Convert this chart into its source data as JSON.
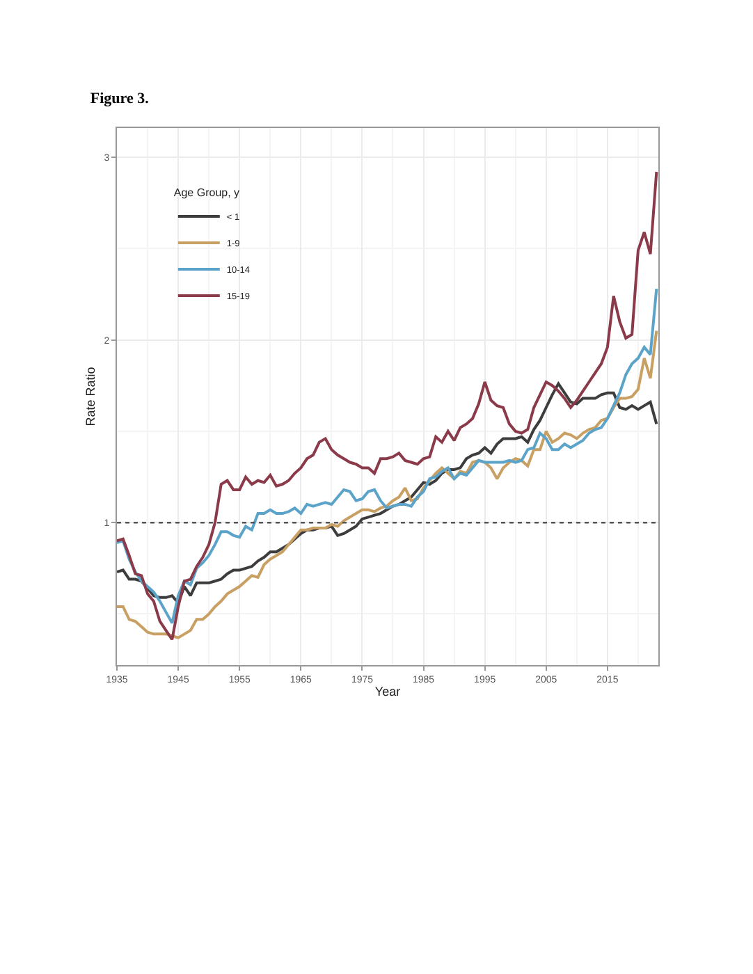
{
  "chart_data": {
    "type": "line",
    "title": "Figure 3.",
    "xlabel": "Year",
    "ylabel": "Rate Ratio",
    "legend_title": "Age Group, y",
    "x": [
      1935,
      1936,
      1937,
      1938,
      1939,
      1940,
      1941,
      1942,
      1943,
      1944,
      1945,
      1946,
      1947,
      1948,
      1949,
      1950,
      1951,
      1952,
      1953,
      1954,
      1955,
      1956,
      1957,
      1958,
      1959,
      1960,
      1961,
      1962,
      1963,
      1964,
      1965,
      1966,
      1967,
      1968,
      1969,
      1970,
      1971,
      1972,
      1973,
      1974,
      1975,
      1976,
      1977,
      1978,
      1979,
      1980,
      1981,
      1982,
      1983,
      1984,
      1985,
      1986,
      1987,
      1988,
      1989,
      1990,
      1991,
      1992,
      1993,
      1994,
      1995,
      1996,
      1997,
      1998,
      1999,
      2000,
      2001,
      2002,
      2003,
      2004,
      2005,
      2006,
      2007,
      2008,
      2009,
      2010,
      2011,
      2012,
      2013,
      2014,
      2015,
      2016,
      2017,
      2018,
      2019,
      2020,
      2021,
      2022,
      2023
    ],
    "series": [
      {
        "name": "< 1",
        "color": "#3d3d3d",
        "values": [
          0.73,
          0.74,
          0.69,
          0.69,
          0.68,
          0.64,
          0.6,
          0.59,
          0.59,
          0.6,
          0.56,
          0.65,
          0.6,
          0.67,
          0.67,
          0.67,
          0.68,
          0.69,
          0.72,
          0.74,
          0.74,
          0.75,
          0.76,
          0.79,
          0.81,
          0.84,
          0.84,
          0.86,
          0.88,
          0.91,
          0.94,
          0.96,
          0.96,
          0.97,
          0.97,
          0.98,
          0.93,
          0.94,
          0.96,
          0.98,
          1.02,
          1.03,
          1.04,
          1.05,
          1.07,
          1.09,
          1.1,
          1.12,
          1.14,
          1.18,
          1.22,
          1.21,
          1.23,
          1.27,
          1.29,
          1.29,
          1.3,
          1.35,
          1.37,
          1.38,
          1.41,
          1.38,
          1.43,
          1.46,
          1.46,
          1.46,
          1.47,
          1.44,
          1.51,
          1.56,
          1.63,
          1.7,
          1.76,
          1.71,
          1.66,
          1.65,
          1.68,
          1.68,
          1.68,
          1.7,
          1.71,
          1.71,
          1.63,
          1.62,
          1.64,
          1.62,
          1.64,
          1.66,
          1.54
        ]
      },
      {
        "name": "1-9",
        "color": "#c9a063",
        "values": [
          0.54,
          0.54,
          0.47,
          0.46,
          0.43,
          0.4,
          0.39,
          0.39,
          0.39,
          0.38,
          0.37,
          0.39,
          0.41,
          0.47,
          0.47,
          0.5,
          0.54,
          0.57,
          0.61,
          0.63,
          0.65,
          0.68,
          0.71,
          0.7,
          0.77,
          0.8,
          0.82,
          0.84,
          0.88,
          0.92,
          0.96,
          0.96,
          0.97,
          0.97,
          0.97,
          0.99,
          0.98,
          1.01,
          1.03,
          1.05,
          1.07,
          1.07,
          1.06,
          1.08,
          1.09,
          1.12,
          1.14,
          1.19,
          1.12,
          1.13,
          1.19,
          1.23,
          1.27,
          1.3,
          1.27,
          1.24,
          1.28,
          1.27,
          1.33,
          1.34,
          1.33,
          1.3,
          1.24,
          1.3,
          1.33,
          1.35,
          1.34,
          1.31,
          1.4,
          1.4,
          1.5,
          1.44,
          1.46,
          1.49,
          1.48,
          1.46,
          1.49,
          1.51,
          1.52,
          1.56,
          1.57,
          1.63,
          1.68,
          1.68,
          1.69,
          1.73,
          1.9,
          1.79,
          2.05
        ]
      },
      {
        "name": "10-14",
        "color": "#5ba3c9",
        "values": [
          0.89,
          0.9,
          0.8,
          0.73,
          0.68,
          0.65,
          0.62,
          0.57,
          0.51,
          0.45,
          0.6,
          0.68,
          0.66,
          0.75,
          0.78,
          0.82,
          0.88,
          0.95,
          0.95,
          0.93,
          0.92,
          0.98,
          0.96,
          1.05,
          1.05,
          1.07,
          1.05,
          1.05,
          1.06,
          1.08,
          1.05,
          1.1,
          1.09,
          1.1,
          1.11,
          1.1,
          1.14,
          1.18,
          1.17,
          1.12,
          1.13,
          1.17,
          1.18,
          1.12,
          1.08,
          1.09,
          1.1,
          1.1,
          1.09,
          1.14,
          1.17,
          1.24,
          1.25,
          1.28,
          1.3,
          1.24,
          1.27,
          1.26,
          1.3,
          1.34,
          1.33,
          1.33,
          1.33,
          1.33,
          1.34,
          1.33,
          1.34,
          1.4,
          1.41,
          1.49,
          1.46,
          1.4,
          1.4,
          1.43,
          1.41,
          1.43,
          1.45,
          1.49,
          1.51,
          1.52,
          1.57,
          1.64,
          1.71,
          1.81,
          1.87,
          1.9,
          1.96,
          1.92,
          2.28
        ]
      },
      {
        "name": "15-19",
        "color": "#8b3a4a",
        "values": [
          0.9,
          0.91,
          0.82,
          0.72,
          0.71,
          0.61,
          0.57,
          0.46,
          0.41,
          0.36,
          0.54,
          0.68,
          0.69,
          0.76,
          0.81,
          0.88,
          1.0,
          1.21,
          1.23,
          1.18,
          1.18,
          1.25,
          1.21,
          1.23,
          1.22,
          1.26,
          1.2,
          1.21,
          1.23,
          1.27,
          1.3,
          1.35,
          1.37,
          1.44,
          1.46,
          1.4,
          1.37,
          1.35,
          1.33,
          1.32,
          1.3,
          1.3,
          1.27,
          1.35,
          1.35,
          1.36,
          1.38,
          1.34,
          1.33,
          1.32,
          1.35,
          1.36,
          1.47,
          1.44,
          1.5,
          1.45,
          1.52,
          1.54,
          1.57,
          1.65,
          1.77,
          1.67,
          1.64,
          1.63,
          1.54,
          1.5,
          1.49,
          1.51,
          1.63,
          1.7,
          1.77,
          1.75,
          1.72,
          1.68,
          1.63,
          1.67,
          1.72,
          1.77,
          1.82,
          1.87,
          1.96,
          2.24,
          2.1,
          2.01,
          2.03,
          2.49,
          2.59,
          2.47,
          2.92
        ]
      }
    ],
    "xlim": [
      1935,
      2023.3
    ],
    "xticks": [
      1935,
      1945,
      1955,
      1965,
      1975,
      1985,
      1995,
      2005,
      2015
    ],
    "ylim": [
      0.22,
      3.16
    ],
    "yticks": [
      1,
      2,
      3
    ],
    "ref_lines": [
      {
        "axis": "y",
        "value": 1,
        "line_style": "dotted",
        "color": "#555555"
      }
    ],
    "grid": true,
    "legend": "top left",
    "line_style": "solid",
    "marker": "none"
  }
}
